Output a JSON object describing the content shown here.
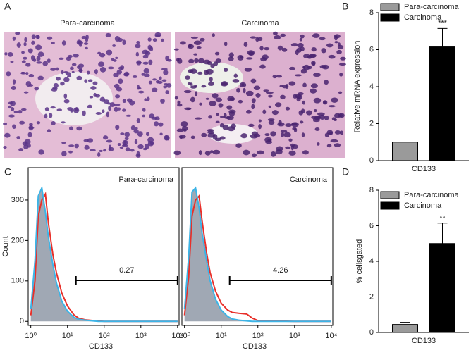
{
  "panel_a": {
    "label": "A",
    "captions": [
      "Para-carcinoma",
      "Carcinoma"
    ]
  },
  "chart_data": [
    {
      "type": "bar",
      "label": "B",
      "ylabel": "Relative mRNA expression",
      "categories": [
        "CD133"
      ],
      "series": [
        {
          "name": "Para-carcinoma",
          "color": "#9a9a9a",
          "values": [
            1
          ]
        },
        {
          "name": "Carcinoma",
          "color": "#000000",
          "values": [
            6.15
          ],
          "errors": [
            1.0
          ],
          "significance": [
            "***"
          ]
        }
      ],
      "ylim": [
        0,
        8
      ],
      "yticks": [
        0,
        2,
        4,
        6,
        8
      ]
    },
    {
      "type": "flow",
      "label": "C",
      "title": "Para-carcinoma",
      "ylabel": "Count",
      "xlabel": "CD133",
      "xscale": "log",
      "fill": "#a0a8b4",
      "x": [
        1,
        1.3,
        1.6,
        2,
        2.5,
        3,
        4,
        5,
        7,
        10,
        15,
        20,
        30,
        50,
        70,
        100,
        1000,
        10000
      ],
      "series": [
        {
          "color": "#e8302a",
          "values": [
            15,
            100,
            260,
            300,
            315,
            245,
            165,
            120,
            70,
            38,
            16,
            8,
            4,
            2,
            1,
            0,
            0,
            0
          ]
        },
        {
          "color": "#3db4e6",
          "values": [
            30,
            150,
            310,
            330,
            270,
            210,
            140,
            95,
            50,
            25,
            10,
            5,
            3,
            1,
            0,
            0,
            0,
            0
          ]
        }
      ],
      "xlim": [
        0.85,
        11000
      ],
      "xticks": [
        {
          "value": 1,
          "label": "10⁰"
        },
        {
          "value": 10,
          "label": "10¹"
        },
        {
          "value": 100,
          "label": "10²"
        },
        {
          "value": 1000,
          "label": "10³"
        },
        {
          "value": 10000,
          "label": "10⁴"
        }
      ],
      "ylim": [
        -10,
        380
      ],
      "yticks": [
        0,
        100,
        200,
        300
      ],
      "gate": {
        "xlim": [
          17,
          10000
        ],
        "value": 0.27
      }
    },
    {
      "type": "flow",
      "title": "Carcinoma",
      "xlabel": "CD133",
      "xscale": "log",
      "fill": "#a0a8b4",
      "x": [
        1,
        1.3,
        1.6,
        2,
        2.5,
        3,
        4,
        5,
        7,
        10,
        15,
        20,
        30,
        50,
        70,
        100,
        1000,
        10000
      ],
      "series": [
        {
          "color": "#e8302a",
          "values": [
            15,
            110,
            260,
            300,
            310,
            250,
            170,
            120,
            75,
            45,
            28,
            22,
            20,
            18,
            8,
            2,
            0,
            0
          ]
        },
        {
          "color": "#3db4e6",
          "values": [
            30,
            160,
            320,
            330,
            280,
            220,
            150,
            100,
            55,
            28,
            12,
            6,
            3,
            1,
            0,
            0,
            0,
            0
          ]
        }
      ],
      "xlim": [
        0.85,
        11000
      ],
      "xticks": [
        {
          "value": 1,
          "label": "10⁰"
        },
        {
          "value": 10,
          "label": "10¹"
        },
        {
          "value": 100,
          "label": "10²"
        },
        {
          "value": 1000,
          "label": "10³"
        },
        {
          "value": 10000,
          "label": "10⁴"
        }
      ],
      "ylim": [
        -10,
        380
      ],
      "gate": {
        "xlim": [
          17,
          10000
        ],
        "value": 4.26
      }
    },
    {
      "type": "bar",
      "label": "D",
      "ylabel": "% cellsgated",
      "categories": [
        "CD133"
      ],
      "series": [
        {
          "name": "Para-carcinoma",
          "color": "#9a9a9a",
          "values": [
            0.45
          ],
          "errors": [
            0.12
          ]
        },
        {
          "name": "Carcinoma",
          "color": "#000000",
          "values": [
            5.0
          ],
          "errors": [
            1.15
          ],
          "significance": [
            "**"
          ]
        }
      ],
      "ylim": [
        0,
        8
      ],
      "yticks": [
        0,
        2,
        4,
        6,
        8
      ]
    }
  ]
}
